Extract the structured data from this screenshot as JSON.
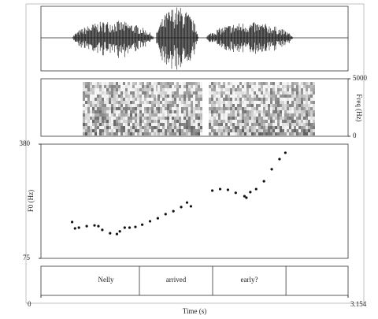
{
  "chart_data": {
    "type": "scatter",
    "ylabel": "F0 (Hz)",
    "xlabel": "Time (s)",
    "xlim": [
      0,
      3.154
    ],
    "xticks": [
      0,
      3.154
    ],
    "ylim": [
      75,
      380
    ],
    "yticks": [
      75,
      380
    ],
    "color": "#111111",
    "x": [
      0.32,
      0.35,
      0.39,
      0.47,
      0.55,
      0.59,
      0.63,
      0.71,
      0.78,
      0.81,
      0.86,
      0.91,
      0.97,
      1.04,
      1.12,
      1.2,
      1.28,
      1.36,
      1.44,
      1.5,
      1.54,
      1.76,
      1.84,
      1.92,
      2.0,
      2.09,
      2.11,
      2.15,
      2.21,
      2.29,
      2.37,
      2.45,
      2.51
    ],
    "values": [
      172,
      155,
      157,
      161,
      163,
      161,
      151,
      142,
      140,
      147,
      157,
      157,
      159,
      165,
      174,
      182,
      193,
      201,
      212,
      224,
      214,
      256,
      260,
      258,
      250,
      241,
      237,
      252,
      260,
      281,
      313,
      340,
      357
    ],
    "spectrogram": {
      "ylabel": "Freq (Hz)",
      "ylim": [
        0,
        5000
      ],
      "yticks": [
        0,
        5000
      ]
    },
    "tier": {
      "labels": [
        "Nelly",
        "arrived",
        "early?"
      ],
      "boundaries": [
        1.011,
        1.763,
        2.516
      ]
    }
  }
}
